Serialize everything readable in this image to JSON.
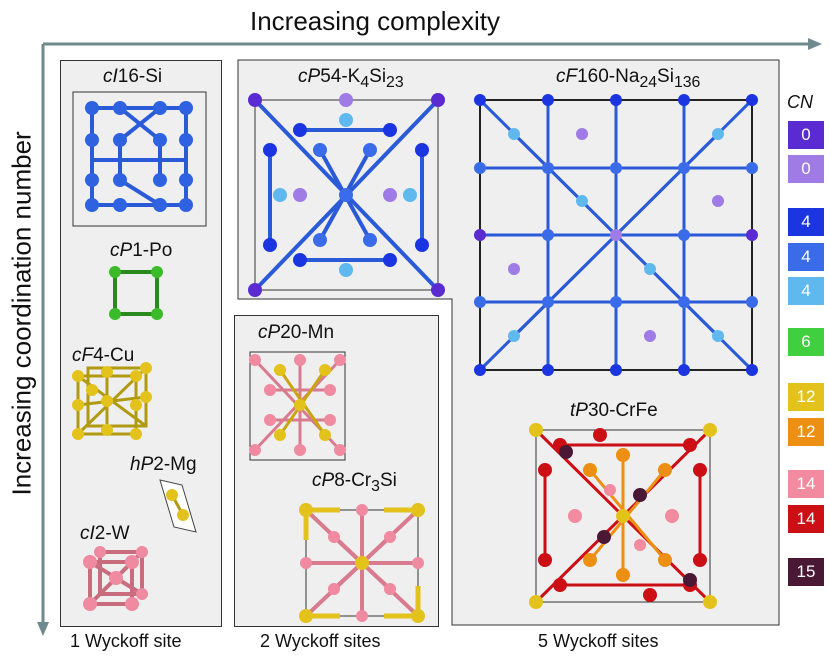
{
  "axes": {
    "top_label": "Increasing complexity",
    "left_label": "Increasing coordination number"
  },
  "structures": [
    {
      "id": "ci16",
      "pre": "cI",
      "suffix": "16-Si"
    },
    {
      "id": "cp1",
      "pre": "cP",
      "suffix": "1-Po"
    },
    {
      "id": "cf4",
      "pre": "cF",
      "suffix": "4-Cu"
    },
    {
      "id": "hp2",
      "pre": "hP",
      "suffix": "2-Mg"
    },
    {
      "id": "ci2",
      "pre": "cI",
      "suffix": "2-W"
    },
    {
      "id": "cp54",
      "pre": "cP",
      "mid": "54-K",
      "sub1": "4",
      "mid2": "Si",
      "sub2": "23"
    },
    {
      "id": "cf160",
      "pre": "cF",
      "mid": "160-Na",
      "sub1": "24",
      "mid2": "Si",
      "sub2": "136"
    },
    {
      "id": "cp20",
      "pre": "cP",
      "suffix": "20-Mn"
    },
    {
      "id": "cp8",
      "pre": "cP",
      "mid": "8-Cr",
      "sub1": "3",
      "mid2": "Si"
    },
    {
      "id": "tp30",
      "pre": "tP",
      "suffix": "30-CrFe"
    }
  ],
  "footers": {
    "one": "1 Wyckoff site",
    "two": "2 Wyckoff sites",
    "five": "5 Wyckoff sites"
  },
  "cn_legend": {
    "title": "CN",
    "items": [
      {
        "label": "0",
        "color": "#5a2bd1"
      },
      {
        "label": "0",
        "color": "#9f7be6"
      },
      {
        "label": "4",
        "color": "#1b35e0"
      },
      {
        "label": "4",
        "color": "#3a6be8"
      },
      {
        "label": "4",
        "color": "#5fb9ee"
      },
      {
        "label": "6",
        "color": "#3fcf3f"
      },
      {
        "label": "12",
        "color": "#e3c21c"
      },
      {
        "label": "12",
        "color": "#ec8f12"
      },
      {
        "label": "14",
        "color": "#f28aa0"
      },
      {
        "label": "14",
        "color": "#cc0e15"
      },
      {
        "label": "15",
        "color": "#4a1734"
      }
    ]
  }
}
